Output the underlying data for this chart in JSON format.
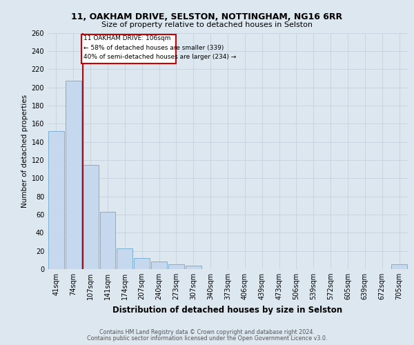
{
  "title_line1": "11, OAKHAM DRIVE, SELSTON, NOTTINGHAM, NG16 6RR",
  "title_line2": "Size of property relative to detached houses in Selston",
  "xlabel": "Distribution of detached houses by size in Selston",
  "ylabel": "Number of detached properties",
  "categories": [
    "41sqm",
    "74sqm",
    "107sqm",
    "141sqm",
    "174sqm",
    "207sqm",
    "240sqm",
    "273sqm",
    "307sqm",
    "340sqm",
    "373sqm",
    "406sqm",
    "439sqm",
    "473sqm",
    "506sqm",
    "539sqm",
    "572sqm",
    "605sqm",
    "639sqm",
    "672sqm",
    "705sqm"
  ],
  "values": [
    152,
    207,
    115,
    63,
    23,
    12,
    8,
    5,
    4,
    0,
    0,
    0,
    0,
    0,
    0,
    0,
    0,
    0,
    0,
    0,
    5
  ],
  "bar_color": "#c5d8ed",
  "bar_edge_color": "#6fa8d0",
  "background_color": "#dde7f0",
  "grid_color": "#c8d4e0",
  "property_line_index": 2,
  "property_label": "11 OAKHAM DRIVE: 106sqm",
  "annotation_line2": "← 58% of detached houses are smaller (339)",
  "annotation_line3": "40% of semi-detached houses are larger (234) →",
  "annotation_box_color": "#cc0000",
  "ylim": [
    0,
    260
  ],
  "yticks": [
    0,
    20,
    40,
    60,
    80,
    100,
    120,
    140,
    160,
    180,
    200,
    220,
    240,
    260
  ],
  "footer_line1": "Contains HM Land Registry data © Crown copyright and database right 2024.",
  "footer_line2": "Contains public sector information licensed under the Open Government Licence v3.0.",
  "title1_fontsize": 9.0,
  "title2_fontsize": 8.0,
  "xlabel_fontsize": 8.5,
  "ylabel_fontsize": 7.5,
  "tick_fontsize": 7.0,
  "footer_fontsize": 5.8
}
